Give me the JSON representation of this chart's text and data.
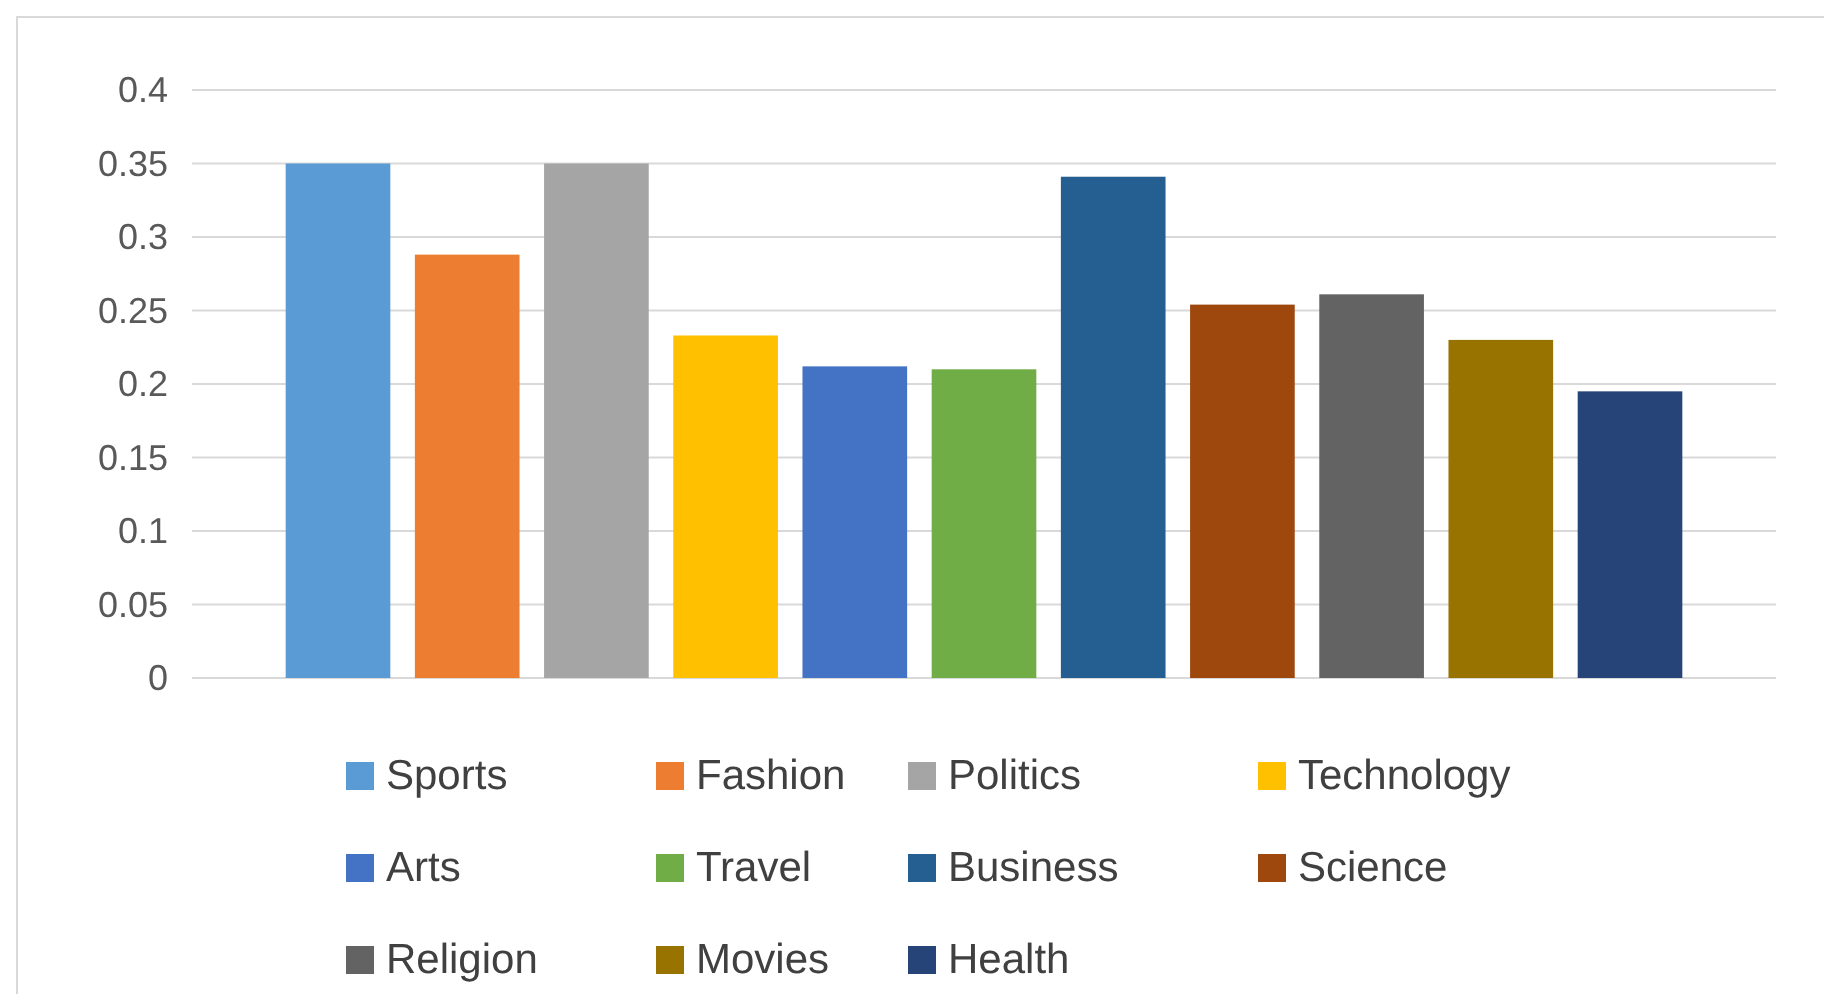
{
  "chart_data": {
    "type": "bar",
    "categories": [
      null
    ],
    "series": [
      {
        "name": "Sports",
        "color": "#5b9bd5",
        "values": [
          0.35
        ]
      },
      {
        "name": "Fashion",
        "color": "#ed7d31",
        "values": [
          0.288
        ]
      },
      {
        "name": "Politics",
        "color": "#a5a5a5",
        "values": [
          0.35
        ]
      },
      {
        "name": "Technology",
        "color": "#ffc000",
        "values": [
          0.233
        ]
      },
      {
        "name": "Arts",
        "color": "#4472c4",
        "values": [
          0.212
        ]
      },
      {
        "name": "Travel",
        "color": "#70ad47",
        "values": [
          0.21
        ]
      },
      {
        "name": "Business",
        "color": "#255e91",
        "values": [
          0.341
        ]
      },
      {
        "name": "Science",
        "color": "#9e480e",
        "values": [
          0.254
        ]
      },
      {
        "name": "Religion",
        "color": "#636363",
        "values": [
          0.261
        ]
      },
      {
        "name": "Movies",
        "color": "#997300",
        "values": [
          0.23
        ]
      },
      {
        "name": "Health",
        "color": "#264478",
        "values": [
          0.195
        ]
      }
    ],
    "ylim": [
      0,
      0.4
    ],
    "yticks": [
      0,
      0.05,
      0.1,
      0.15,
      0.2,
      0.25,
      0.3,
      0.35,
      0.4
    ],
    "grid": "y",
    "legend": "bottom"
  }
}
